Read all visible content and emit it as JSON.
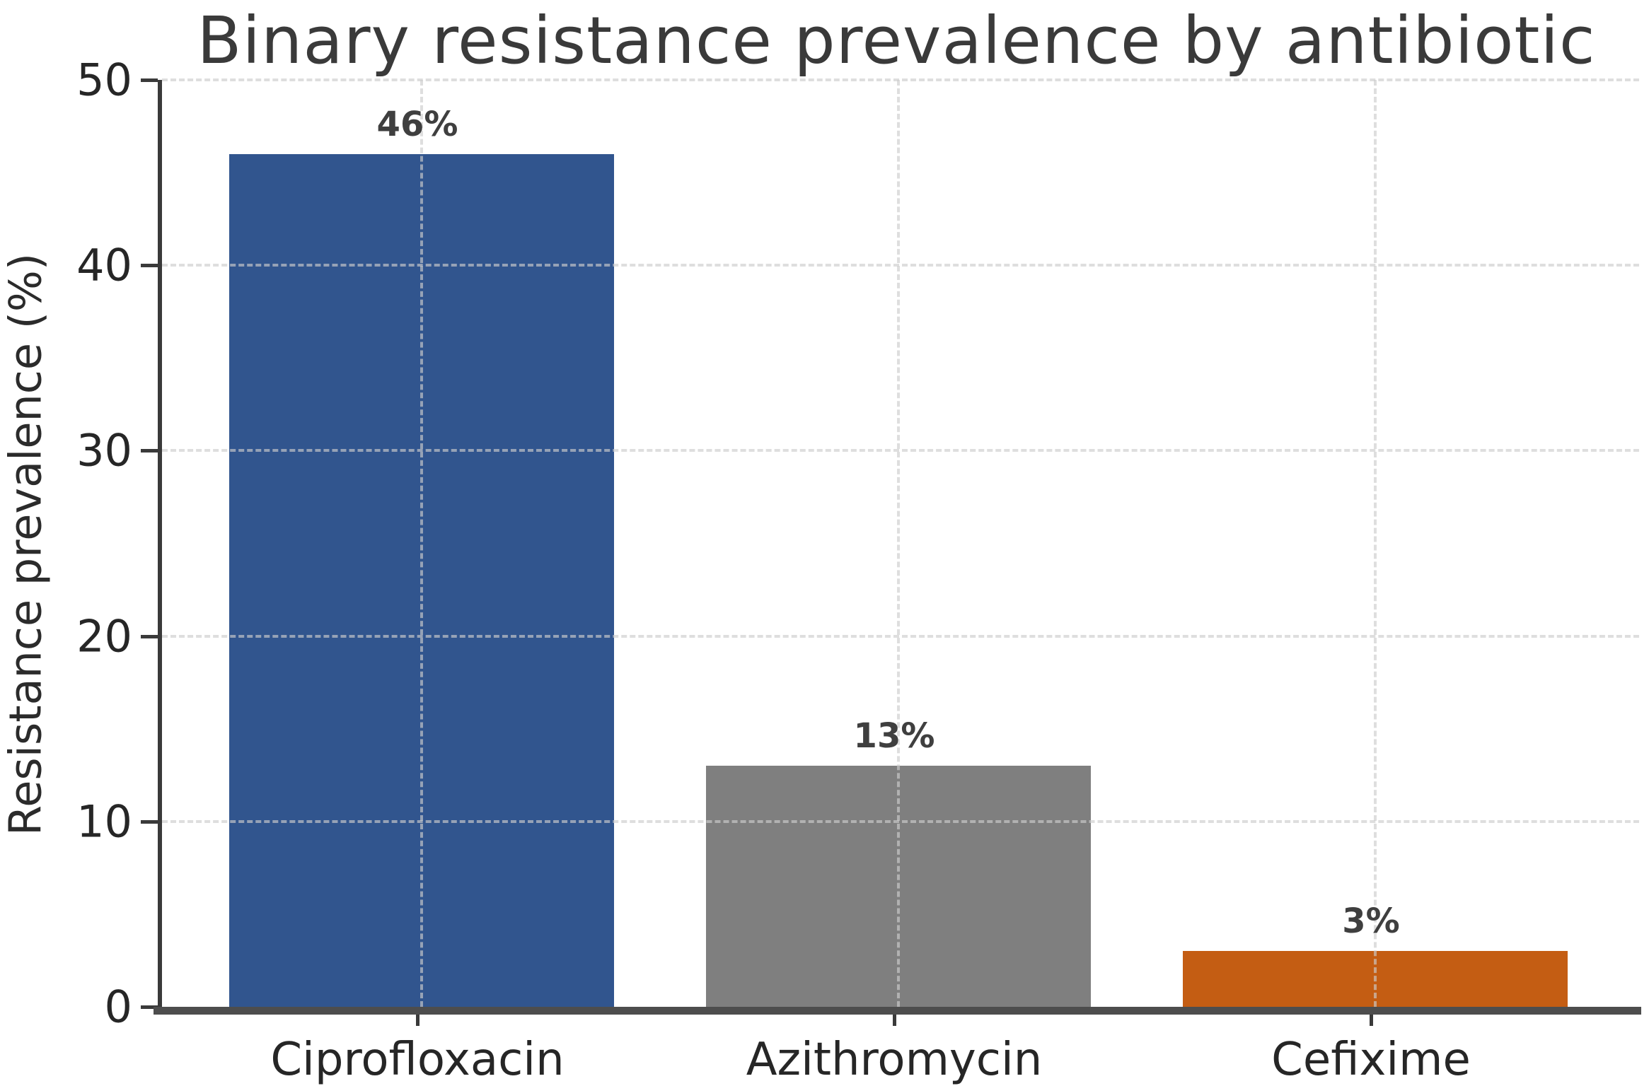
{
  "chart_data": {
    "type": "bar",
    "title": "Binary resistance prevalence by antibiotic",
    "ylabel": "Resistance prevalence (%)",
    "xlabel": "",
    "categories": [
      "Ciprofloxacin",
      "Azithromycin",
      "Cefixime"
    ],
    "values": [
      46,
      13,
      3
    ],
    "value_labels": [
      "46%",
      "13%",
      "3%"
    ],
    "bar_colors": [
      "#31558e",
      "#7f7f7f",
      "#c45d13"
    ],
    "ylim": [
      0,
      50
    ],
    "yticks": [
      0,
      10,
      20,
      30,
      40,
      50
    ],
    "ytick_labels": [
      "0",
      "10",
      "20",
      "30",
      "40",
      "50"
    ],
    "grid": {
      "horizontal": true,
      "vertical": true,
      "style": "dashed",
      "color": "#cdcdcd",
      "drawn_above_bars": true
    },
    "legend": "none"
  },
  "style": {
    "background": "#ffffff",
    "title_color": "#3a3a3a",
    "tick_text_color": "#262626",
    "value_label_color": "#3f3f3f",
    "y_spine_color": "#3a3a3a",
    "x_axis_line_color": "#4d4d4d"
  }
}
